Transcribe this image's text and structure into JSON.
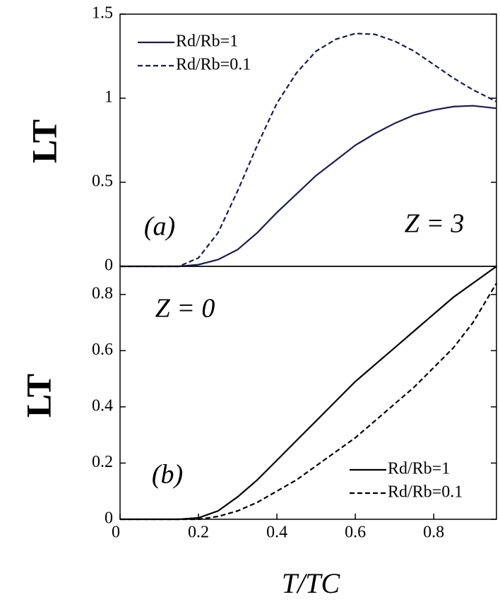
{
  "chart_data": [
    {
      "type": "line",
      "ylabel": "LT",
      "annotations": [
        "(a)",
        "Z = 3"
      ],
      "x": [
        0,
        0.05,
        0.1,
        0.15,
        0.2,
        0.25,
        0.3,
        0.35,
        0.4,
        0.45,
        0.5,
        0.55,
        0.6,
        0.65,
        0.7,
        0.75,
        0.8,
        0.85,
        0.9,
        0.96
      ],
      "series": [
        {
          "name": "Rd/Rb=1",
          "color": "#1c1c50",
          "linestyle": "solid",
          "values": [
            0,
            0,
            0,
            0,
            0.01,
            0.04,
            0.1,
            0.2,
            0.32,
            0.43,
            0.54,
            0.63,
            0.72,
            0.79,
            0.85,
            0.9,
            0.93,
            0.95,
            0.955,
            0.94
          ]
        },
        {
          "name": "Rd/Rb=0.1",
          "color": "#1c1c50",
          "linestyle": "dashed",
          "values": [
            0,
            0,
            0,
            0,
            0.05,
            0.2,
            0.45,
            0.72,
            0.97,
            1.15,
            1.28,
            1.35,
            1.385,
            1.38,
            1.34,
            1.28,
            1.2,
            1.12,
            1.05,
            0.98
          ]
        }
      ],
      "xlim": [
        0,
        0.96
      ],
      "ylim": [
        0,
        1.5
      ],
      "yticks": [
        0,
        0.5,
        1,
        1.5
      ],
      "legend": "upper left"
    },
    {
      "type": "line",
      "xlabel": "T/TC",
      "ylabel": "LT",
      "annotations": [
        "Z = 0",
        "(b)"
      ],
      "x": [
        0,
        0.05,
        0.1,
        0.15,
        0.2,
        0.25,
        0.3,
        0.35,
        0.4,
        0.45,
        0.5,
        0.55,
        0.6,
        0.65,
        0.7,
        0.75,
        0.8,
        0.85,
        0.9,
        0.96
      ],
      "series": [
        {
          "name": "Rd/Rb=1",
          "color": "#000000",
          "linestyle": "solid",
          "values": [
            0,
            0,
            0,
            0,
            0.005,
            0.03,
            0.08,
            0.14,
            0.21,
            0.28,
            0.35,
            0.42,
            0.49,
            0.55,
            0.61,
            0.67,
            0.73,
            0.79,
            0.84,
            0.9
          ]
        },
        {
          "name": "Rd/Rb=0.1",
          "color": "#000000",
          "linestyle": "dashed",
          "values": [
            0,
            0,
            0,
            0,
            0,
            0.01,
            0.03,
            0.06,
            0.1,
            0.14,
            0.19,
            0.24,
            0.29,
            0.35,
            0.41,
            0.47,
            0.54,
            0.61,
            0.7,
            0.84
          ]
        }
      ],
      "xlim": [
        0,
        0.96
      ],
      "ylim": [
        0,
        0.9
      ],
      "xticks": [
        0,
        0.2,
        0.4,
        0.6,
        0.8
      ],
      "yticks": [
        0,
        0.2,
        0.4,
        0.6,
        0.8
      ],
      "legend": "lower right"
    }
  ]
}
